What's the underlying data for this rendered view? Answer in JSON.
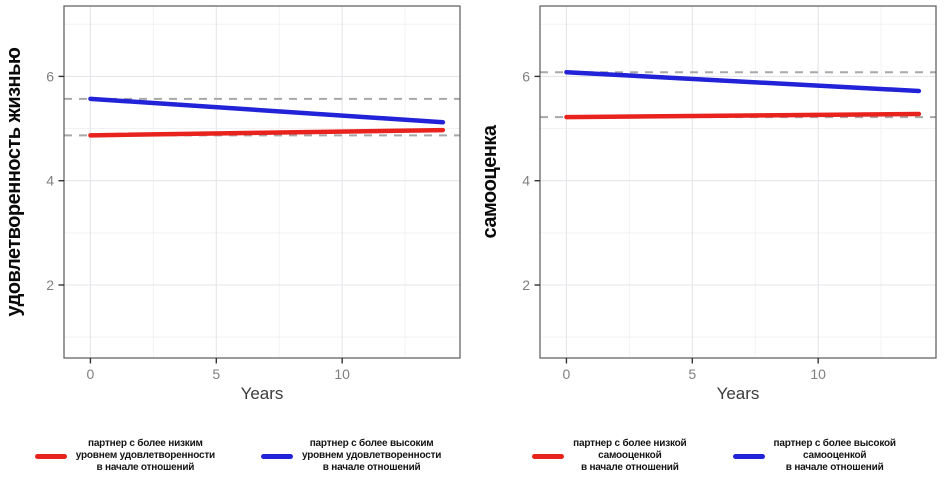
{
  "page": {
    "background": "#ffffff"
  },
  "colors": {
    "series_red": "#e8231e",
    "series_blue": "#2222d8",
    "reference_dash": "#a8a8a8",
    "panel_border": "#58595b",
    "grid_major": "#e6e6ea",
    "grid_minor": "#f2f2f5",
    "tick_label": "#808080"
  },
  "chart_data": [
    {
      "type": "line",
      "title": "",
      "ylabel": "удовлетворенность жизнью",
      "xlabel": "Years",
      "x_ticks": [
        0,
        5,
        10
      ],
      "x_minor": [
        2.5,
        7.5,
        12.5
      ],
      "y_ticks": [
        2,
        4,
        6
      ],
      "y_minor": [
        1,
        3,
        5,
        7
      ],
      "xlim": [
        -1.05,
        14.68
      ],
      "ylim": [
        0.6,
        7.35
      ],
      "grid": true,
      "legend_position": "bottom",
      "series": [
        {
          "name": "партнер с более низким уровнем удовлетворенности в начале отношений",
          "color": "#e8231e",
          "x": [
            0,
            14
          ],
          "y": [
            4.87,
            4.97
          ]
        },
        {
          "name": "партнер с более высоким уровнем удовлетворенности в начале отношений",
          "color": "#2222d8",
          "x": [
            0,
            14
          ],
          "y": [
            5.57,
            5.12
          ]
        }
      ],
      "reference_lines": [
        {
          "y": 4.87,
          "style": "dashed",
          "color": "#a8a8a8"
        },
        {
          "y": 5.57,
          "style": "dashed",
          "color": "#a8a8a8"
        }
      ],
      "legend": [
        {
          "color": "#e8231e",
          "lines": [
            "партнер с более низким",
            "уровнем удовлетворенности",
            "в начале отношений"
          ]
        },
        {
          "color": "#2222d8",
          "lines": [
            "партнер с более высоким",
            "уровнем удовлетворенности",
            "в начале отношений"
          ]
        }
      ]
    },
    {
      "type": "line",
      "title": "",
      "ylabel": "самооценка",
      "xlabel": "Years",
      "x_ticks": [
        0,
        5,
        10
      ],
      "x_minor": [
        2.5,
        7.5,
        12.5
      ],
      "y_ticks": [
        2,
        4,
        6
      ],
      "y_minor": [
        1,
        3,
        5,
        7
      ],
      "xlim": [
        -1.05,
        14.68
      ],
      "ylim": [
        0.6,
        7.35
      ],
      "grid": true,
      "legend_position": "bottom",
      "series": [
        {
          "name": "партнер с более низкой самооценкой в начале отношений",
          "color": "#e8231e",
          "x": [
            0,
            14
          ],
          "y": [
            5.22,
            5.28
          ]
        },
        {
          "name": "партнер с более высокой самооценкой в начале отношений",
          "color": "#2222d8",
          "x": [
            0,
            14
          ],
          "y": [
            6.08,
            5.72
          ]
        }
      ],
      "reference_lines": [
        {
          "y": 5.22,
          "style": "dashed",
          "color": "#a8a8a8"
        },
        {
          "y": 6.08,
          "style": "dashed",
          "color": "#a8a8a8"
        }
      ],
      "legend": [
        {
          "color": "#e8231e",
          "lines": [
            "партнер с более низкой",
            "самооценкой",
            "в начале отношений"
          ]
        },
        {
          "color": "#2222d8",
          "lines": [
            "партнер с более высокой",
            "самооценкой",
            "в начале отношений"
          ]
        }
      ]
    }
  ]
}
